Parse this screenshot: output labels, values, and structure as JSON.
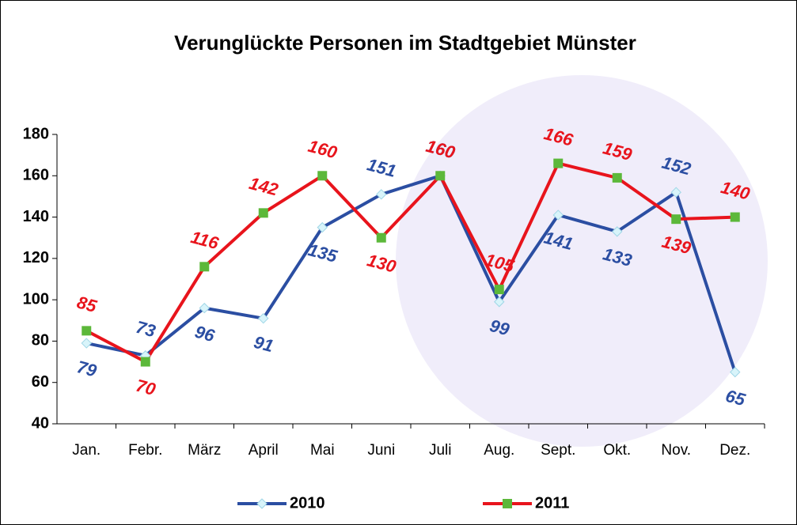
{
  "chart_data": {
    "type": "line",
    "title": "Verunglückte Personen im Stadtgebiet Münster",
    "categories": [
      "Jan.",
      "Febr.",
      "März",
      "April",
      "Mai",
      "Juni",
      "Juli",
      "Aug.",
      "Sept.",
      "Okt.",
      "Nov.",
      "Dez."
    ],
    "series": [
      {
        "name": "2010",
        "color": "#2b4ea2",
        "marker_color": "#d8f4fa",
        "values": [
          79,
          73,
          96,
          91,
          135,
          151,
          160,
          99,
          141,
          133,
          152,
          65
        ]
      },
      {
        "name": "2011",
        "color": "#e8141c",
        "marker_color": "#5cb83a",
        "values": [
          85,
          70,
          116,
          142,
          160,
          130,
          160,
          105,
          166,
          159,
          139,
          140
        ]
      }
    ],
    "ylim": [
      40,
      180
    ],
    "yticks": [
      40,
      60,
      80,
      100,
      120,
      140,
      160,
      180
    ],
    "legend": "bottom"
  }
}
